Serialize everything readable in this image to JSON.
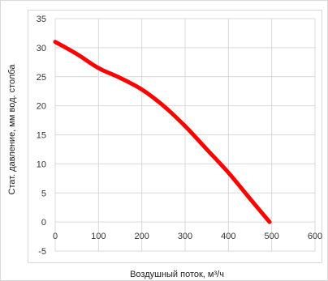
{
  "chart_data": {
    "type": "line",
    "title": "",
    "xlabel": "Воздушный поток,  м³/ч",
    "ylabel": "Стат. давление, мм вод. столба",
    "xlim": [
      0,
      600
    ],
    "ylim": [
      -5,
      35
    ],
    "x_ticks": [
      "0",
      "100",
      "200",
      "300",
      "400",
      "500",
      "600"
    ],
    "y_ticks": [
      "-5",
      "0",
      "5",
      "10",
      "15",
      "20",
      "25",
      "30",
      "35"
    ],
    "grid": true,
    "legend": "none",
    "series": [
      {
        "color": "#ff0000",
        "x": [
          0,
          50,
          100,
          150,
          200,
          250,
          300,
          350,
          400,
          450,
          495
        ],
        "y": [
          31,
          28.9,
          26.5,
          24.8,
          22.8,
          20,
          16.5,
          12.5,
          8.5,
          4,
          0
        ]
      }
    ]
  }
}
